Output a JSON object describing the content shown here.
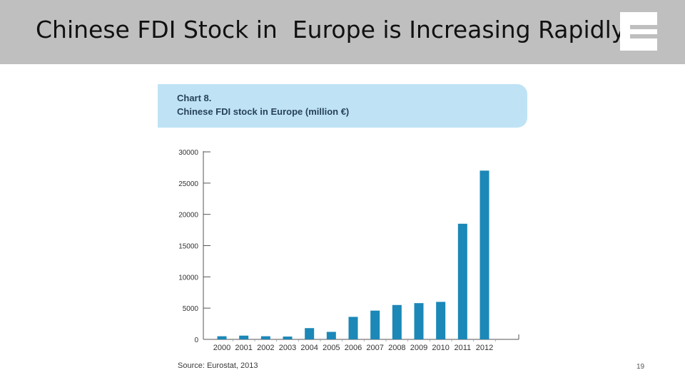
{
  "slide": {
    "title": "Chinese FDI Stock in  Europe is Increasing Rapidly",
    "page_number": "19",
    "logo_icon": "e-logo-icon"
  },
  "chart_panel": {
    "label": "Chart 8.",
    "title": "Chinese FDI stock in Europe (million €)"
  },
  "source": "Source: Eurostat, 2013",
  "chart_data": {
    "type": "bar",
    "title": "Chinese FDI stock in Europe (million €)",
    "categories": [
      "2000",
      "2001",
      "2002",
      "2003",
      "2004",
      "2005",
      "2006",
      "2007",
      "2008",
      "2009",
      "2010",
      "2011",
      "2012"
    ],
    "values": [
      500,
      600,
      500,
      450,
      1800,
      1200,
      3600,
      4600,
      5500,
      5800,
      6000,
      18500,
      27000
    ],
    "yticks": [
      0,
      5000,
      10000,
      15000,
      20000,
      25000,
      30000
    ],
    "ylim": [
      0,
      30000
    ],
    "xlabel": "",
    "ylabel": "",
    "bar_color": "#1b88b8",
    "grid": false
  }
}
